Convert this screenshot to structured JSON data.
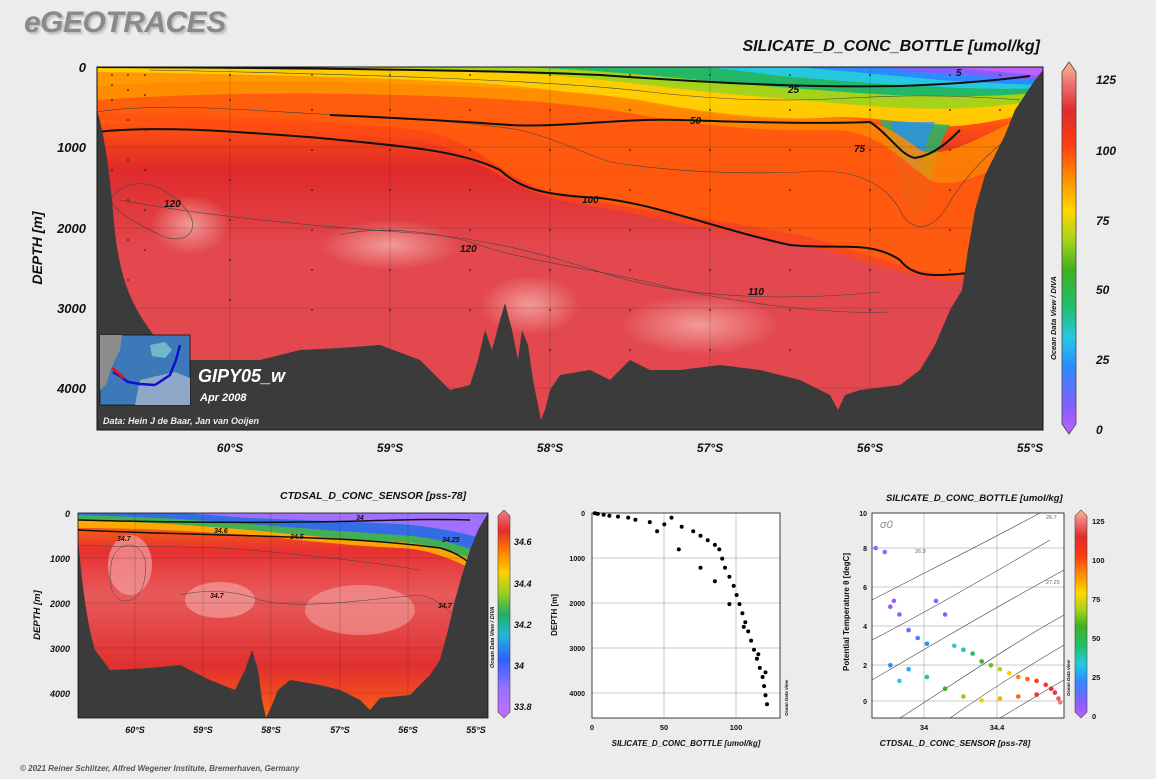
{
  "brand": "eGEOTRACES",
  "footer": "© 2021 Reiner Schlitzer, Alfred Wegener Institute, Bremerhaven, Germany",
  "main": {
    "title": "SILICATE_D_CONC_BOTTLE [umol/kg]",
    "ylabel": "DEPTH [m]",
    "y_ticks": [
      "0",
      "1000",
      "2000",
      "3000",
      "4000"
    ],
    "x_ticks": [
      "60°S",
      "59°S",
      "58°S",
      "57°S",
      "56°S",
      "55°S"
    ],
    "colorbar_ticks": [
      "125",
      "100",
      "75",
      "50",
      "25",
      "0"
    ],
    "credit": "Ocean Data View / DIVA",
    "contour_labels": [
      "5",
      "25",
      "50",
      "75",
      "100",
      "120",
      "120",
      "110"
    ],
    "cruise": "GIPY05_w",
    "date": "Apr 2008",
    "data_credit": "Data: Hein J de Baar, Jan van Ooijen"
  },
  "sal": {
    "title": "CTDSAL_D_CONC_SENSOR [pss-78]",
    "ylabel": "DEPTH [m]",
    "y_ticks": [
      "0",
      "1000",
      "2000",
      "3000",
      "4000"
    ],
    "x_ticks": [
      "60°S",
      "59°S",
      "58°S",
      "57°S",
      "56°S",
      "55°S"
    ],
    "colorbar_ticks": [
      "34.6",
      "34.4",
      "34.2",
      "34",
      "33.8"
    ],
    "credit": "Ocean Data View / DIVA",
    "contour_labels": [
      "34",
      "34.25",
      "34.5",
      "34.6",
      "34.7",
      "34.7",
      "34.7"
    ]
  },
  "scatter": {
    "xlabel": "SILICATE_D_CONC_BOTTLE [umol/kg]",
    "ylabel": "DEPTH [m]",
    "x_ticks": [
      "0",
      "50",
      "100"
    ],
    "y_ticks": [
      "0",
      "1000",
      "2000",
      "3000",
      "4000"
    ],
    "credit": "Ocean Data View"
  },
  "ts": {
    "title": "SILICATE_D_CONC_BOTTLE [umol/kg]",
    "xlabel": "CTDSAL_D_CONC_SENSOR [pss-78]",
    "ylabel": "Potential Temperature θ [degC]",
    "x_ticks": [
      "34",
      "34.4"
    ],
    "y_ticks": [
      "10",
      "8",
      "6",
      "4",
      "2",
      "0"
    ],
    "sigma_label": "σ0",
    "density_labels": [
      "26.7",
      "26.9",
      "27.25"
    ],
    "colorbar_ticks": [
      "125",
      "100",
      "75",
      "50",
      "25",
      "0"
    ],
    "credit": "Ocean Data View"
  },
  "chart_data": [
    {
      "type": "heatmap",
      "title": "SILICATE_D_CONC_BOTTLE [umol/kg]",
      "ylabel": "DEPTH [m]",
      "x": [
        "60°S",
        "59°S",
        "58°S",
        "57°S",
        "56°S",
        "55°S"
      ],
      "ylim": [
        4500,
        0
      ],
      "colorbar_range": [
        0,
        130
      ],
      "contours": [
        5,
        25,
        50,
        75,
        100,
        110,
        120
      ]
    },
    {
      "type": "heatmap",
      "title": "CTDSAL_D_CONC_SENSOR [pss-78]",
      "ylabel": "DEPTH [m]",
      "x": [
        "60°S",
        "59°S",
        "58°S",
        "57°S",
        "56°S",
        "55°S"
      ],
      "ylim": [
        4500,
        0
      ],
      "colorbar_range": [
        33.7,
        34.75
      ],
      "contours": [
        34,
        34.25,
        34.5,
        34.6,
        34.7
      ]
    },
    {
      "type": "scatter",
      "xlabel": "SILICATE_D_CONC_BOTTLE [umol/kg]",
      "ylabel": "DEPTH [m]",
      "xlim": [
        0,
        130
      ],
      "ylim": [
        4500,
        0
      ],
      "points": [
        [
          2,
          5
        ],
        [
          4,
          20
        ],
        [
          8,
          40
        ],
        [
          12,
          60
        ],
        [
          18,
          80
        ],
        [
          25,
          100
        ],
        [
          30,
          150
        ],
        [
          40,
          200
        ],
        [
          50,
          250
        ],
        [
          55,
          100
        ],
        [
          62,
          300
        ],
        [
          70,
          400
        ],
        [
          75,
          500
        ],
        [
          80,
          600
        ],
        [
          85,
          700
        ],
        [
          88,
          800
        ],
        [
          90,
          1000
        ],
        [
          92,
          1200
        ],
        [
          95,
          1400
        ],
        [
          98,
          1600
        ],
        [
          100,
          1800
        ],
        [
          102,
          2000
        ],
        [
          104,
          2200
        ],
        [
          106,
          2400
        ],
        [
          108,
          2600
        ],
        [
          110,
          2800
        ],
        [
          112,
          3000
        ],
        [
          114,
          3200
        ],
        [
          116,
          3400
        ],
        [
          118,
          3600
        ],
        [
          119,
          3800
        ],
        [
          120,
          4000
        ],
        [
          121,
          4200
        ],
        [
          45,
          400
        ],
        [
          60,
          800
        ],
        [
          75,
          1200
        ],
        [
          85,
          1500
        ],
        [
          95,
          2000
        ],
        [
          105,
          2500
        ],
        [
          115,
          3100
        ],
        [
          120,
          3500
        ]
      ]
    },
    {
      "type": "scatter",
      "xlabel": "CTDSAL_D_CONC_SENSOR [pss-78]",
      "ylabel": "Potential Temperature θ [degC]",
      "xlim": [
        33.7,
        34.75
      ],
      "ylim": [
        -0.5,
        10
      ],
      "color_variable": "SILICATE_D_CONC_BOTTLE [umol/kg]",
      "points": [
        [
          33.72,
          8.2,
          5
        ],
        [
          33.77,
          8.0,
          5
        ],
        [
          33.8,
          5.2,
          8
        ],
        [
          33.82,
          5.5,
          6
        ],
        [
          33.85,
          4.8,
          10
        ],
        [
          33.9,
          4.0,
          15
        ],
        [
          33.95,
          3.6,
          20
        ],
        [
          34.0,
          3.3,
          25
        ],
        [
          34.05,
          5.5,
          12
        ],
        [
          34.1,
          4.8,
          14
        ],
        [
          34.15,
          3.2,
          35
        ],
        [
          34.2,
          3.0,
          40
        ],
        [
          34.25,
          2.8,
          45
        ],
        [
          34.3,
          2.4,
          55
        ],
        [
          34.35,
          2.2,
          60
        ],
        [
          34.4,
          2.0,
          70
        ],
        [
          34.45,
          1.8,
          80
        ],
        [
          34.5,
          1.6,
          90
        ],
        [
          34.55,
          1.5,
          95
        ],
        [
          34.6,
          1.4,
          100
        ],
        [
          34.65,
          1.2,
          105
        ],
        [
          34.68,
          1.0,
          110
        ],
        [
          34.7,
          0.8,
          115
        ],
        [
          34.72,
          0.5,
          120
        ],
        [
          34.73,
          0.3,
          125
        ],
        [
          33.9,
          2.0,
          30
        ],
        [
          34.0,
          1.6,
          40
        ],
        [
          34.1,
          1.0,
          55
        ],
        [
          34.2,
          0.6,
          65
        ],
        [
          34.3,
          0.4,
          75
        ],
        [
          34.4,
          0.5,
          85
        ],
        [
          34.5,
          0.6,
          95
        ],
        [
          34.6,
          0.7,
          105
        ],
        [
          33.8,
          2.2,
          25
        ],
        [
          33.85,
          1.4,
          35
        ]
      ]
    }
  ]
}
